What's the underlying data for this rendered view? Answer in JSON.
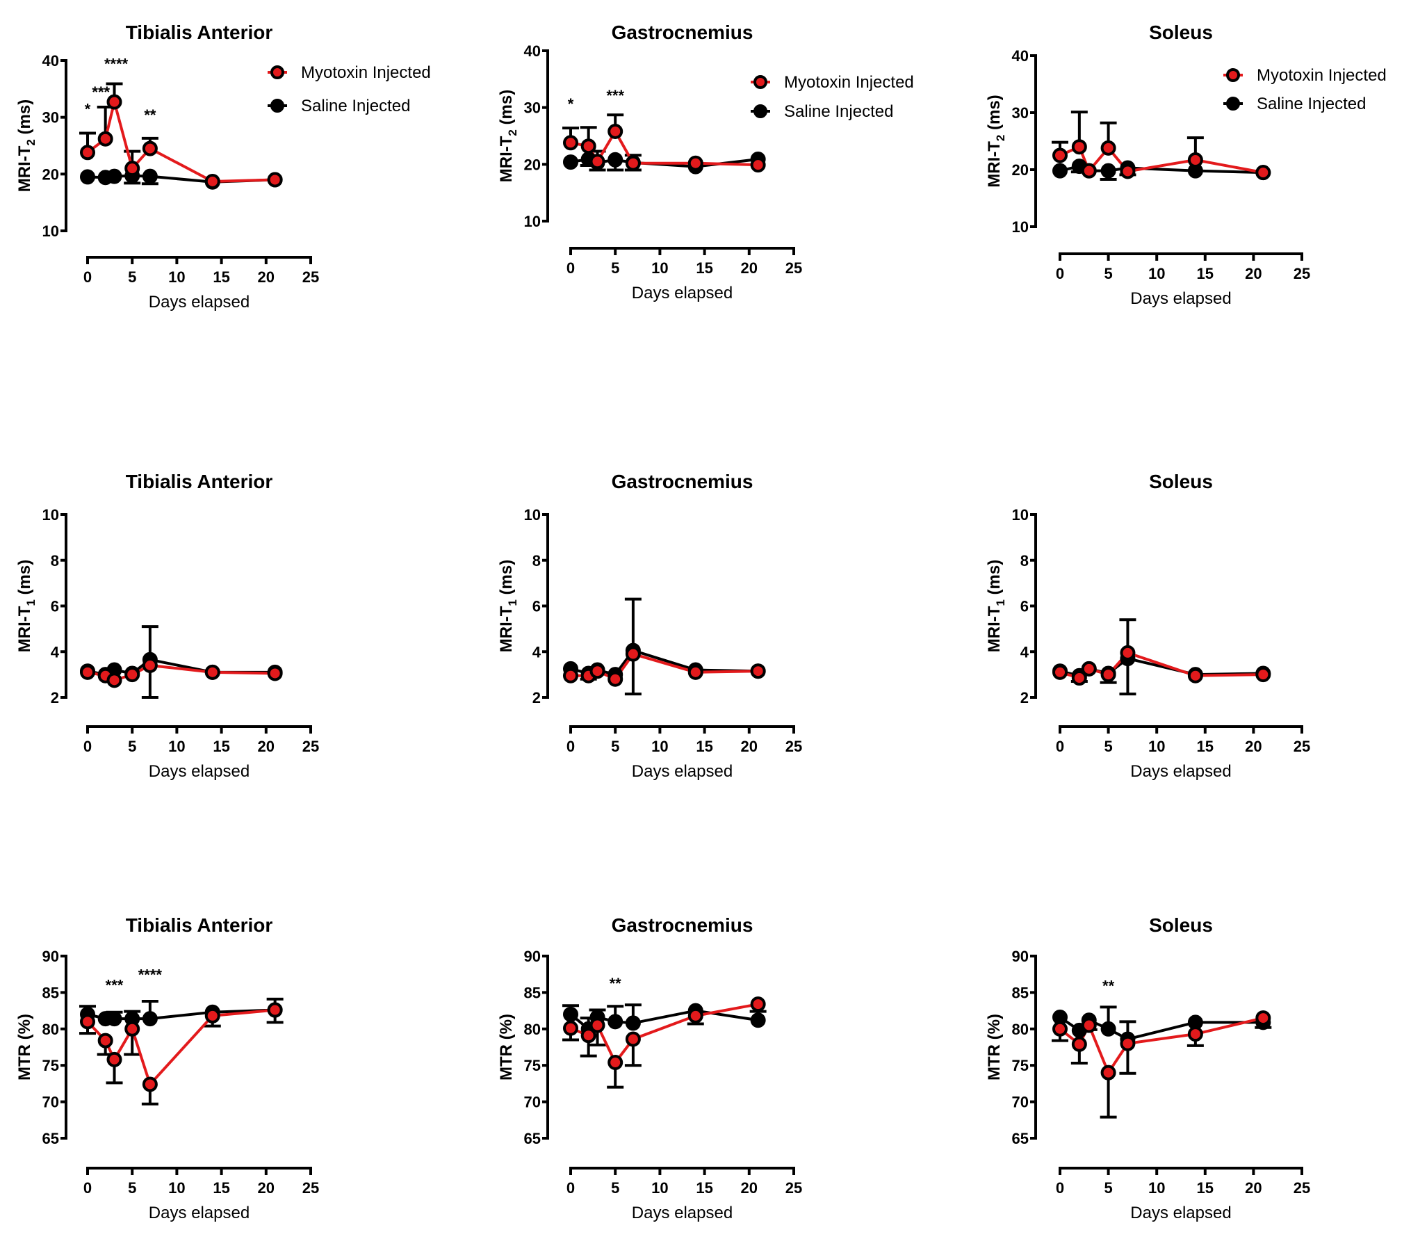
{
  "figure": {
    "legend": {
      "myotoxin": "Myotoxin Injected",
      "saline": "Saline Injected"
    },
    "colors": {
      "myotoxin": "#e31a1c",
      "saline": "#000000"
    }
  },
  "chart_data": [
    {
      "type": "line",
      "title": "Tibialis Anterior",
      "ylabel": "MRI-T2 (ms)",
      "ylabel_main": "MRI-T",
      "ylabel_sub": "2",
      "ylabel_tail": " (ms)",
      "xlabel": "Days elapsed",
      "xlim": [
        0,
        25
      ],
      "ylim": [
        10,
        40
      ],
      "xticks": [
        0,
        5,
        10,
        15,
        20,
        25
      ],
      "yticks": [
        10,
        20,
        30,
        40
      ],
      "legend": "top-right",
      "x": [
        0,
        2,
        3,
        5,
        7,
        14,
        21
      ],
      "series": [
        {
          "name": "Saline Injected",
          "values": [
            19.5,
            19.4,
            19.6,
            19.7,
            19.6,
            18.6,
            19.0
          ],
          "err": [
            0,
            0,
            0,
            -1.3,
            -1.3,
            0,
            0
          ]
        },
        {
          "name": "Myotoxin Injected",
          "values": [
            23.8,
            26.2,
            32.7,
            21.0,
            24.5,
            18.7,
            19.0
          ],
          "err": [
            3.4,
            5.6,
            3.2,
            3.0,
            1.8,
            0,
            0
          ]
        }
      ],
      "annotations": [
        {
          "x": 0,
          "y": 30.5,
          "text": "*"
        },
        {
          "x": 1.5,
          "y": 33.5,
          "text": "***"
        },
        {
          "x": 3.2,
          "y": 38.5,
          "text": "****"
        },
        {
          "x": 7,
          "y": 29.5,
          "text": "**"
        }
      ]
    },
    {
      "type": "line",
      "title": "Gastrocnemius",
      "ylabel": "MRI-T2 (ms)",
      "ylabel_main": "MRI-T",
      "ylabel_sub": "2",
      "ylabel_tail": " (ms)",
      "xlabel": "Days elapsed",
      "xlim": [
        0,
        25
      ],
      "ylim": [
        10,
        40
      ],
      "xticks": [
        0,
        5,
        10,
        15,
        20,
        25
      ],
      "yticks": [
        10,
        20,
        30,
        40
      ],
      "legend": "top-right",
      "x": [
        0,
        2,
        3,
        5,
        7,
        14,
        21
      ],
      "series": [
        {
          "name": "Saline Injected",
          "values": [
            20.4,
            20.9,
            20.3,
            20.8,
            20.3,
            19.6,
            20.9
          ],
          "err": [
            0,
            -1.1,
            -1.3,
            -1.8,
            -1.3,
            0,
            0
          ]
        },
        {
          "name": "Myotoxin Injected",
          "values": [
            23.8,
            23.2,
            20.5,
            25.8,
            20.2,
            20.2,
            19.9
          ],
          "err": [
            2.6,
            3.3,
            1.8,
            2.9,
            1.4,
            0,
            0
          ]
        }
      ],
      "annotations": [
        {
          "x": 0,
          "y": 29.7,
          "text": "*"
        },
        {
          "x": 5,
          "y": 31.2,
          "text": "***"
        }
      ]
    },
    {
      "type": "line",
      "title": "Soleus",
      "ylabel": "MRI-T2 (ms)",
      "ylabel_main": "MRI-T",
      "ylabel_sub": "2",
      "ylabel_tail": " (ms)",
      "xlabel": "Days elapsed",
      "xlim": [
        0,
        25
      ],
      "ylim": [
        10,
        40
      ],
      "xticks": [
        0,
        5,
        10,
        15,
        20,
        25
      ],
      "yticks": [
        10,
        20,
        30,
        40
      ],
      "legend": "top-right",
      "x": [
        0,
        2,
        3,
        5,
        7,
        14,
        21
      ],
      "series": [
        {
          "name": "Saline Injected",
          "values": [
            19.8,
            20.6,
            19.8,
            19.8,
            20.3,
            19.8,
            19.5
          ],
          "err": [
            0,
            -1.0,
            0,
            -1.5,
            -1.2,
            0,
            0
          ]
        },
        {
          "name": "Myotoxin Injected",
          "values": [
            22.5,
            24.0,
            19.8,
            23.8,
            19.7,
            21.7,
            19.5
          ],
          "err": [
            2.3,
            6.1,
            0,
            4.4,
            0,
            3.9,
            0
          ]
        }
      ],
      "annotations": []
    },
    {
      "type": "line",
      "title": "Tibialis Anterior",
      "ylabel": "MRI-T1 (ms)",
      "ylabel_main": "MRI-T",
      "ylabel_sub": "1",
      "ylabel_tail": " (ms)",
      "xlabel": "Days elapsed",
      "xlim": [
        0,
        25
      ],
      "ylim": [
        2,
        10
      ],
      "xticks": [
        0,
        5,
        10,
        15,
        20,
        25
      ],
      "yticks": [
        2,
        4,
        6,
        8,
        10
      ],
      "legend": "none",
      "x": [
        0,
        2,
        3,
        5,
        7,
        14,
        21
      ],
      "series": [
        {
          "name": "Saline Injected",
          "values": [
            3.15,
            3.0,
            3.2,
            3.05,
            3.65,
            3.1,
            3.1
          ],
          "err": [
            0,
            0,
            0,
            0,
            1.45,
            0,
            0
          ]
        },
        {
          "name": "Myotoxin Injected",
          "values": [
            3.1,
            2.95,
            2.75,
            3.0,
            3.4,
            3.1,
            3.05
          ],
          "err": [
            0,
            0,
            0,
            0,
            -1.4,
            0,
            0
          ]
        }
      ],
      "annotations": []
    },
    {
      "type": "line",
      "title": "Gastrocnemius",
      "ylabel": "MRI-T1 (ms)",
      "ylabel_main": "MRI-T",
      "ylabel_sub": "1",
      "ylabel_tail": " (ms)",
      "xlabel": "Days elapsed",
      "xlim": [
        0,
        25
      ],
      "ylim": [
        2,
        10
      ],
      "xticks": [
        0,
        5,
        10,
        15,
        20,
        25
      ],
      "yticks": [
        2,
        4,
        6,
        8,
        10
      ],
      "legend": "none",
      "x": [
        0,
        2,
        3,
        5,
        7,
        14,
        21
      ],
      "series": [
        {
          "name": "Saline Injected",
          "values": [
            3.25,
            3.05,
            3.2,
            3.0,
            4.05,
            3.2,
            3.15
          ],
          "err": [
            0,
            -0.25,
            0,
            0,
            2.25,
            0,
            0
          ]
        },
        {
          "name": "Myotoxin Injected",
          "values": [
            2.95,
            2.95,
            3.15,
            2.8,
            3.9,
            3.1,
            3.15
          ],
          "err": [
            0,
            0,
            0,
            0,
            -1.75,
            0,
            0
          ]
        }
      ],
      "annotations": []
    },
    {
      "type": "line",
      "title": "Soleus",
      "ylabel": "MRI-T1 (ms)",
      "ylabel_main": "MRI-T",
      "ylabel_sub": "1",
      "ylabel_tail": " (ms)",
      "xlabel": "Days elapsed",
      "xlim": [
        0,
        25
      ],
      "ylim": [
        2,
        10
      ],
      "xticks": [
        0,
        5,
        10,
        15,
        20,
        25
      ],
      "yticks": [
        2,
        4,
        6,
        8,
        10
      ],
      "legend": "none",
      "x": [
        0,
        2,
        3,
        5,
        7,
        14,
        21
      ],
      "series": [
        {
          "name": "Saline Injected",
          "values": [
            3.15,
            2.95,
            3.25,
            3.05,
            3.7,
            3.0,
            3.05
          ],
          "err": [
            0,
            -0.25,
            0,
            -0.4,
            -1.55,
            0,
            0
          ]
        },
        {
          "name": "Myotoxin Injected",
          "values": [
            3.1,
            2.85,
            3.25,
            3.0,
            3.95,
            2.95,
            3.0
          ],
          "err": [
            0,
            0,
            0,
            0,
            1.45,
            0,
            0
          ]
        }
      ],
      "annotations": []
    },
    {
      "type": "line",
      "title": "Tibialis Anterior",
      "ylabel": "MTR (%)",
      "ylabel_main": "MTR (%)",
      "ylabel_sub": "",
      "ylabel_tail": "",
      "xlabel": "Days elapsed",
      "xlim": [
        0,
        25
      ],
      "ylim": [
        65,
        90
      ],
      "xticks": [
        0,
        5,
        10,
        15,
        20,
        25
      ],
      "yticks": [
        65,
        70,
        75,
        80,
        85,
        90
      ],
      "legend": "none",
      "x": [
        0,
        2,
        3,
        5,
        7,
        14,
        21
      ],
      "series": [
        {
          "name": "Saline Injected",
          "values": [
            82.0,
            81.4,
            81.4,
            81.4,
            81.4,
            82.3,
            82.6
          ],
          "err": [
            1.1,
            0,
            0.9,
            1.0,
            2.4,
            0,
            1.5
          ]
        },
        {
          "name": "Myotoxin Injected",
          "values": [
            81.0,
            78.4,
            75.8,
            80.0,
            72.4,
            81.8,
            82.6
          ],
          "err": [
            -1.6,
            -1.9,
            -3.2,
            -3.5,
            -2.7,
            -1.4,
            -1.7
          ]
        }
      ],
      "annotations": [
        {
          "x": 3,
          "y": 85.3,
          "text": "***"
        },
        {
          "x": 7,
          "y": 86.7,
          "text": "****"
        }
      ]
    },
    {
      "type": "line",
      "title": "Gastrocnemius",
      "ylabel": "MTR (%)",
      "ylabel_main": "MTR (%)",
      "ylabel_sub": "",
      "ylabel_tail": "",
      "xlabel": "Days elapsed",
      "xlim": [
        0,
        25
      ],
      "ylim": [
        65,
        90
      ],
      "xticks": [
        0,
        5,
        10,
        15,
        20,
        25
      ],
      "yticks": [
        65,
        70,
        75,
        80,
        85,
        90
      ],
      "legend": "none",
      "x": [
        0,
        2,
        3,
        5,
        7,
        14,
        21
      ],
      "series": [
        {
          "name": "Saline Injected",
          "values": [
            82.0,
            80.0,
            81.6,
            81.0,
            80.8,
            82.5,
            81.2
          ],
          "err": [
            1.2,
            1.5,
            1.0,
            2.1,
            2.5,
            0,
            1.2
          ]
        },
        {
          "name": "Myotoxin Injected",
          "values": [
            80.1,
            79.1,
            80.5,
            75.4,
            78.6,
            81.8,
            83.4
          ],
          "err": [
            -1.6,
            -2.8,
            -2.7,
            -3.4,
            -3.6,
            -1.1,
            0
          ]
        }
      ],
      "annotations": [
        {
          "x": 5,
          "y": 85.5,
          "text": "**"
        }
      ]
    },
    {
      "type": "line",
      "title": "Soleus",
      "ylabel": "MTR (%)",
      "ylabel_main": "MTR (%)",
      "ylabel_sub": "",
      "ylabel_tail": "",
      "xlabel": "Days elapsed",
      "xlim": [
        0,
        25
      ],
      "ylim": [
        65,
        90
      ],
      "xticks": [
        0,
        5,
        10,
        15,
        20,
        25
      ],
      "yticks": [
        65,
        70,
        75,
        80,
        85,
        90
      ],
      "legend": "none",
      "x": [
        0,
        2,
        3,
        5,
        7,
        14,
        21
      ],
      "series": [
        {
          "name": "Saline Injected",
          "values": [
            81.6,
            79.8,
            81.2,
            80.0,
            78.6,
            80.9,
            80.9
          ],
          "err": [
            0,
            0,
            -1.3,
            3.0,
            2.4,
            0,
            -0.7
          ]
        },
        {
          "name": "Myotoxin Injected",
          "values": [
            80.0,
            77.9,
            80.5,
            74.0,
            78.0,
            79.3,
            81.5
          ],
          "err": [
            -1.6,
            -2.6,
            0,
            -6.1,
            -4.1,
            -1.6,
            0
          ]
        }
      ],
      "annotations": [
        {
          "x": 5,
          "y": 85.2,
          "text": "**"
        }
      ]
    }
  ]
}
